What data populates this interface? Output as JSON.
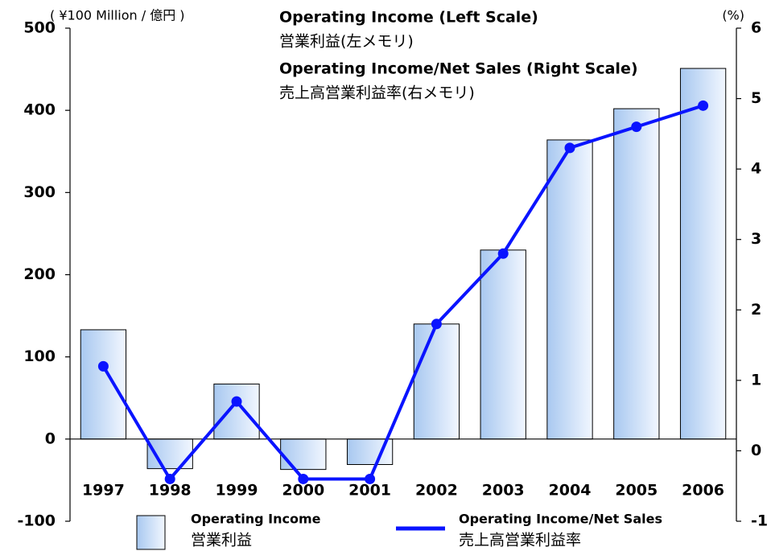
{
  "chart_data": {
    "type": "bar_line",
    "annotations": [
      "Operating Income (Left Scale)",
      "営業利益(左メモリ)",
      "Operating Income/Net Sales (Right Scale)",
      "売上高営業利益率(右メモリ)"
    ],
    "y_label": "( ¥100 Million / 億円 )",
    "y2_label": "(%)",
    "categories": [
      "1997",
      "1998",
      "1999",
      "2000",
      "2001",
      "2002",
      "2003",
      "2004",
      "2005",
      "2006"
    ],
    "series": [
      {
        "name": "Operating Income",
        "name_ja": "営業利益",
        "type": "bar",
        "color": "#a8c8f0",
        "values": [
          133,
          -36,
          67,
          -37,
          -31,
          140,
          230,
          364,
          402,
          451
        ]
      },
      {
        "name": "Operating Income/Net Sales",
        "name_ja": "売上高営業利益率",
        "type": "line",
        "axis": "y2",
        "color": "#0a14ff",
        "values": [
          1.2,
          -0.4,
          0.7,
          -0.4,
          -0.4,
          1.8,
          2.8,
          4.3,
          4.6,
          4.9
        ]
      }
    ],
    "ylim": [
      -100,
      500
    ],
    "yticks": [
      -100,
      0,
      100,
      200,
      300,
      400,
      500
    ],
    "y2lim": [
      -1,
      6
    ],
    "y2ticks": [
      -1,
      0,
      1,
      2,
      3,
      4,
      5,
      6
    ],
    "grid": false
  }
}
